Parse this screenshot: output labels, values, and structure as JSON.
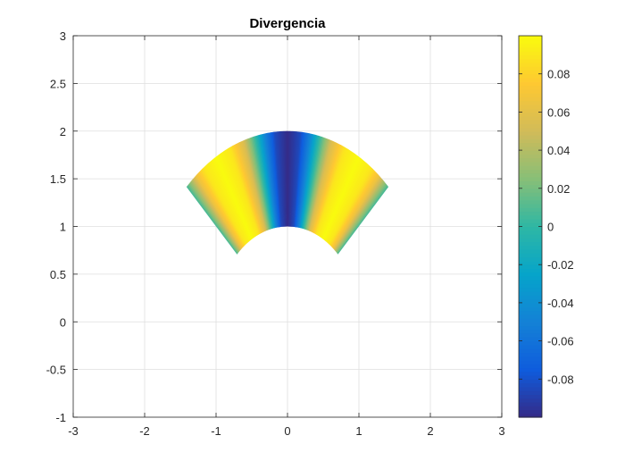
{
  "chart_data": {
    "type": "heatmap",
    "title": "Divergencia",
    "xlabel": "",
    "ylabel": "",
    "xlim": [
      -3,
      3
    ],
    "ylim": [
      -1,
      3
    ],
    "x_ticks": [
      -3,
      -2,
      -1,
      0,
      1,
      2,
      3
    ],
    "x_tick_labels": [
      "-3",
      "-2",
      "-1",
      "0",
      "1",
      "2",
      "3"
    ],
    "y_ticks": [
      -1,
      -0.5,
      0,
      0.5,
      1,
      1.5,
      2,
      2.5,
      3
    ],
    "y_tick_labels": [
      "-1",
      "-0.5",
      "0",
      "0.5",
      "1",
      "1.5",
      "2",
      "2.5",
      "3"
    ],
    "grid": true,
    "colormap": "parula",
    "colorbar": {
      "limits": [
        -0.1,
        0.1
      ],
      "ticks": [
        -0.08,
        -0.06,
        -0.04,
        -0.02,
        0,
        0.02,
        0.04,
        0.06,
        0.08
      ],
      "tick_labels": [
        "-0.08",
        "-0.06",
        "-0.04",
        "-0.02",
        "0",
        "0.02",
        "0.04",
        "0.06",
        "0.08"
      ],
      "placement": "right"
    },
    "region": {
      "shape": "annular-sector",
      "center": [
        0,
        0
      ],
      "inner_radius": 1,
      "outer_radius": 2,
      "angle_range_deg": [
        45,
        135
      ]
    },
    "field": {
      "variable": "polar-angle-deg",
      "samples": [
        {
          "angle_deg": 45,
          "value": 0.005
        },
        {
          "angle_deg": 47,
          "value": 0.03
        },
        {
          "angle_deg": 50,
          "value": 0.065
        },
        {
          "angle_deg": 54,
          "value": 0.09
        },
        {
          "angle_deg": 60,
          "value": 0.1
        },
        {
          "angle_deg": 66,
          "value": 0.09
        },
        {
          "angle_deg": 72,
          "value": 0.055
        },
        {
          "angle_deg": 77,
          "value": 0.0
        },
        {
          "angle_deg": 81,
          "value": -0.05
        },
        {
          "angle_deg": 85,
          "value": -0.085
        },
        {
          "angle_deg": 90,
          "value": -0.1
        },
        {
          "angle_deg": 95,
          "value": -0.085
        },
        {
          "angle_deg": 99,
          "value": -0.05
        },
        {
          "angle_deg": 103,
          "value": 0.0
        },
        {
          "angle_deg": 108,
          "value": 0.055
        },
        {
          "angle_deg": 114,
          "value": 0.09
        },
        {
          "angle_deg": 120,
          "value": 0.1
        },
        {
          "angle_deg": 126,
          "value": 0.09
        },
        {
          "angle_deg": 130,
          "value": 0.065
        },
        {
          "angle_deg": 133,
          "value": 0.03
        },
        {
          "angle_deg": 135,
          "value": 0.005
        }
      ]
    }
  },
  "colors": {
    "parula": [
      "#352a87",
      "#0f5cdd",
      "#1481d6",
      "#06a4ca",
      "#2eb7a4",
      "#87bf77",
      "#d1bb59",
      "#fec832",
      "#f9fb0e"
    ],
    "axes": "#262626",
    "grid": "#dfdfdf"
  }
}
